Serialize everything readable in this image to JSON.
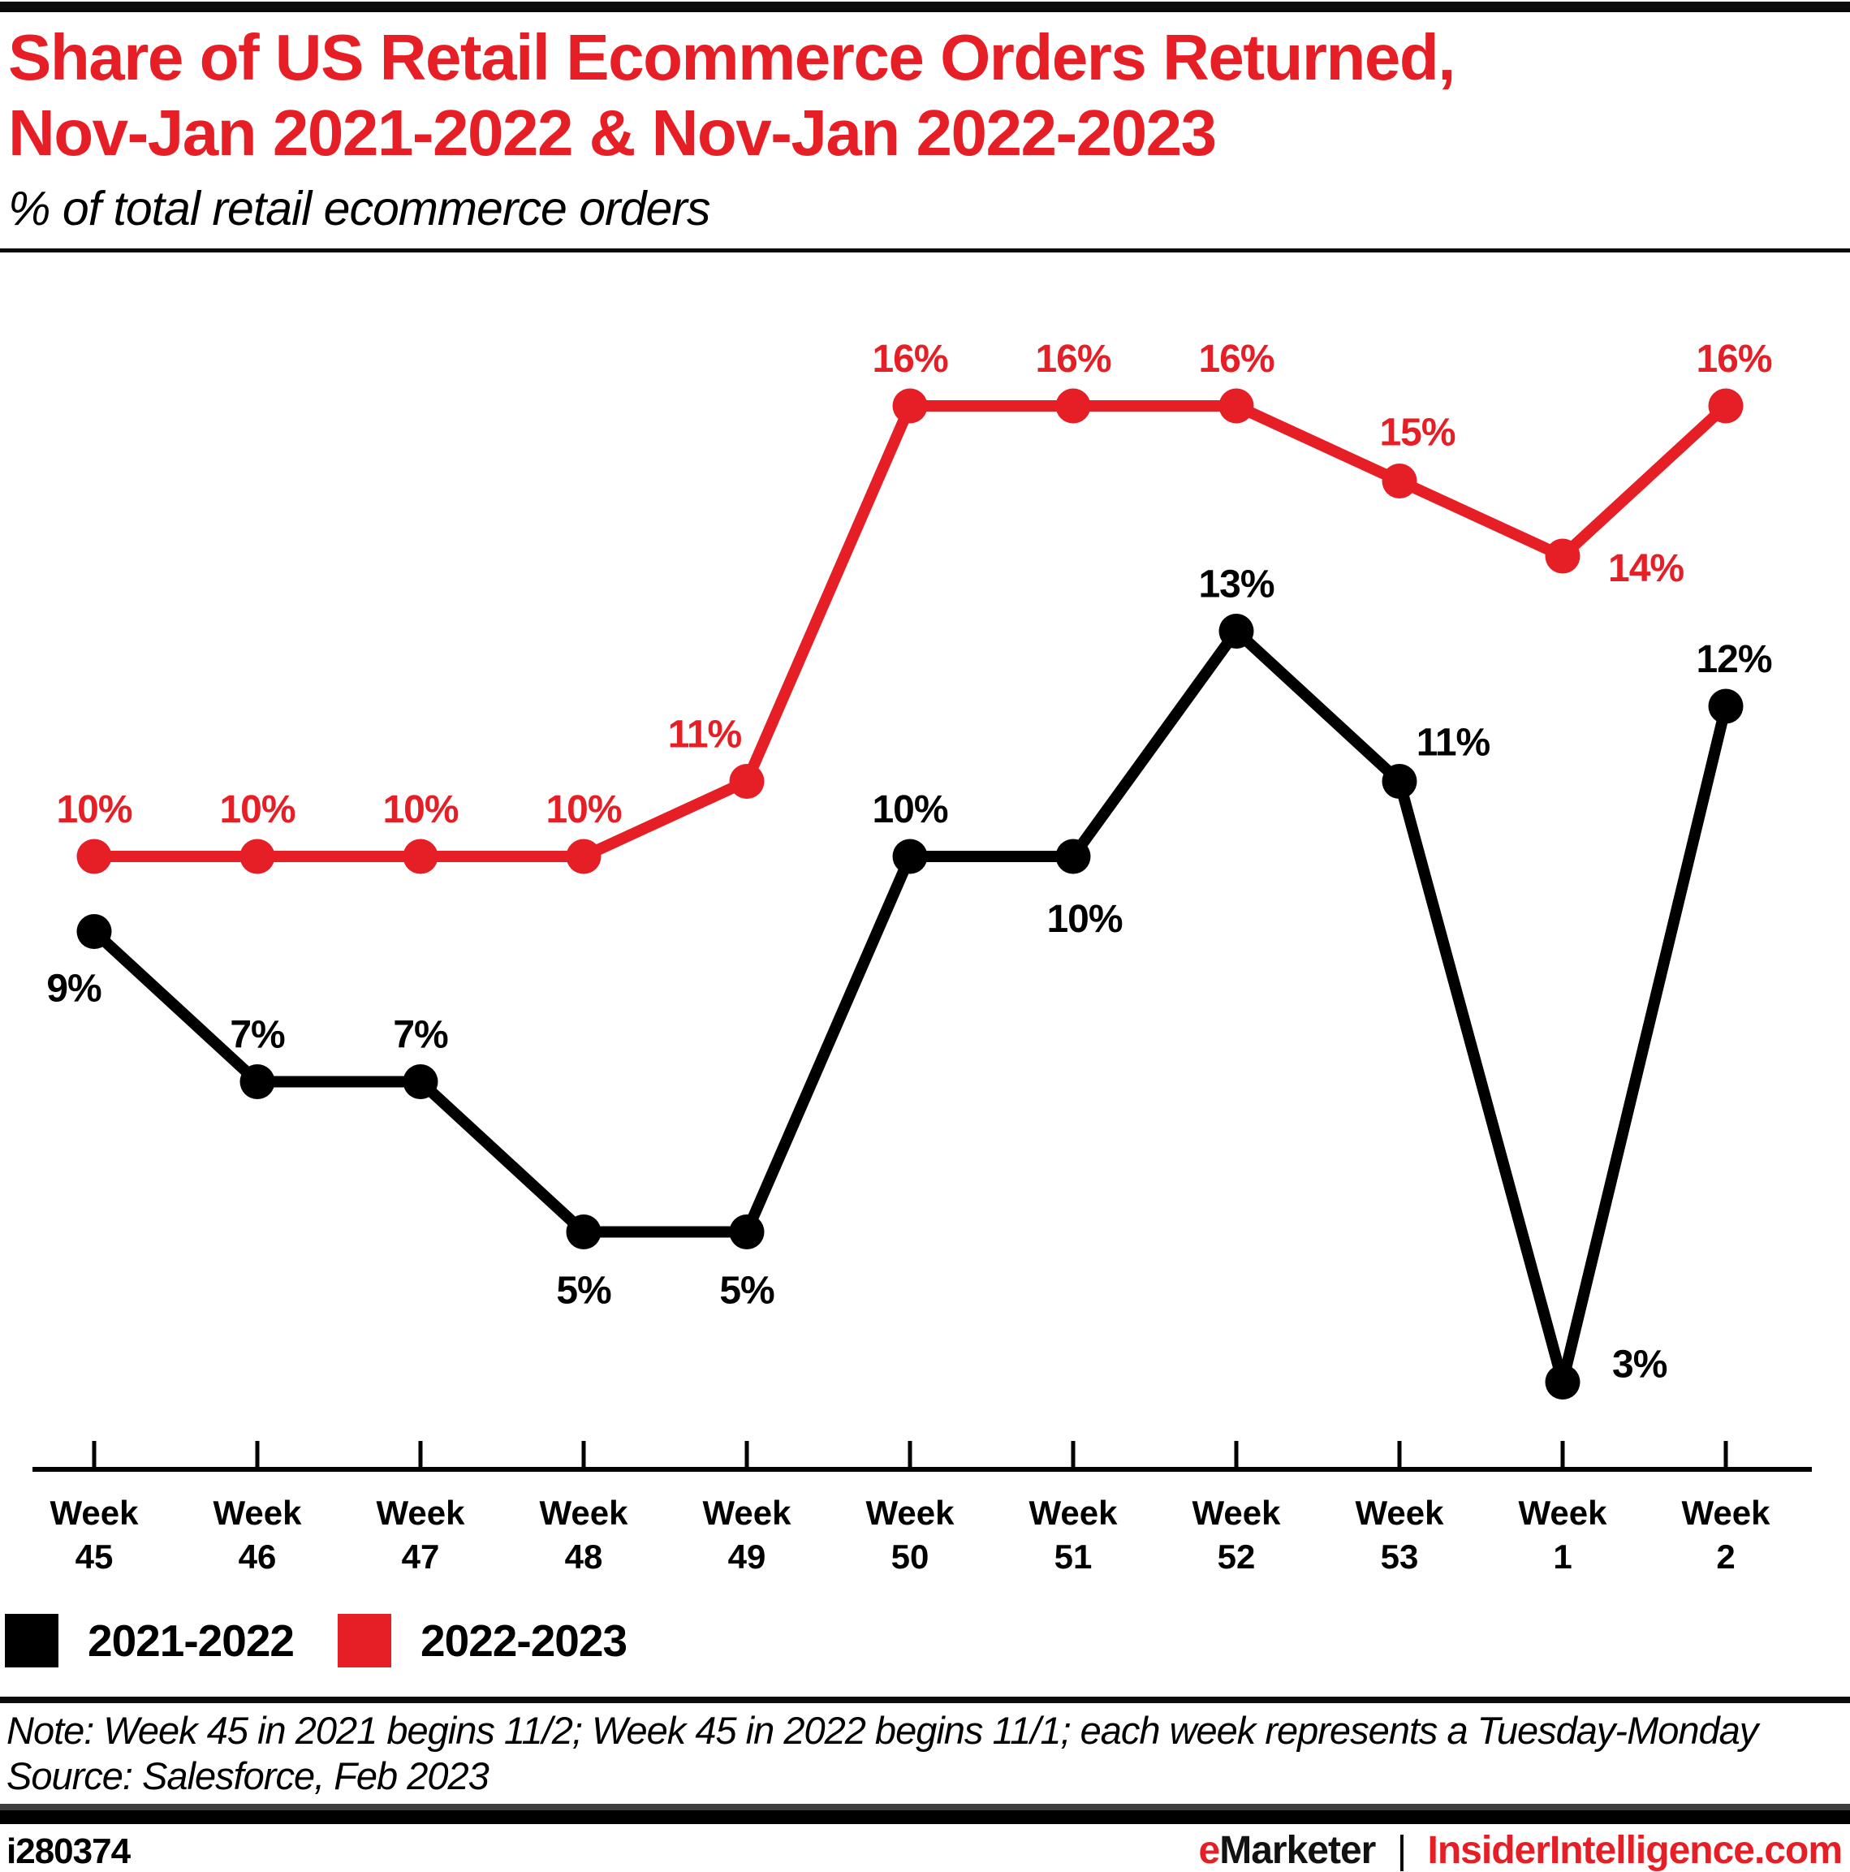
{
  "header": {
    "title_line1": "Share of US Retail Ecommerce Orders Returned,",
    "title_line2": "Nov-Jan 2021-2022 & Nov-Jan 2022-2023",
    "subtitle": "% of total retail ecommerce orders"
  },
  "chart_data": {
    "type": "line",
    "title": "Share of US Retail Ecommerce Orders Returned, Nov-Jan 2021-2022 & Nov-Jan 2022-2023",
    "subtitle": "% of total retail ecommerce orders",
    "unit": "%",
    "x_label_word": "Week",
    "categories": [
      "45",
      "46",
      "47",
      "48",
      "49",
      "50",
      "51",
      "52",
      "53",
      "1",
      "2"
    ],
    "series": [
      {
        "name": "2021-2022",
        "color": "#000000",
        "values": [
          9,
          7,
          7,
          5,
          5,
          10,
          10,
          13,
          11,
          3,
          12
        ]
      },
      {
        "name": "2022-2023",
        "color": "#e61e25",
        "values": [
          10,
          10,
          10,
          10,
          11,
          16,
          16,
          16,
          15,
          14,
          16
        ]
      }
    ],
    "ylim": [
      0,
      18
    ],
    "grid": false,
    "value_labels": true,
    "legend_position": "bottom-left"
  },
  "legend": {
    "items": [
      {
        "label": "2021-2022",
        "color": "#000000"
      },
      {
        "label": "2022-2023",
        "color": "#e61e25"
      }
    ]
  },
  "note": {
    "line1": "Note: Week 45 in 2021 begins 11/2; Week 45 in 2022 begins 11/1; each week represents a Tuesday-Monday",
    "line2": "Source: Salesforce, Feb 2023"
  },
  "footer": {
    "chart_id": "i280374",
    "brand_e": "e",
    "brand_marketer": "Marketer",
    "separator": "|",
    "site": "InsiderIntelligence.com"
  },
  "colors": {
    "accent_red": "#e61e25",
    "black": "#000000",
    "bar_gray": "#3d3d3d"
  }
}
